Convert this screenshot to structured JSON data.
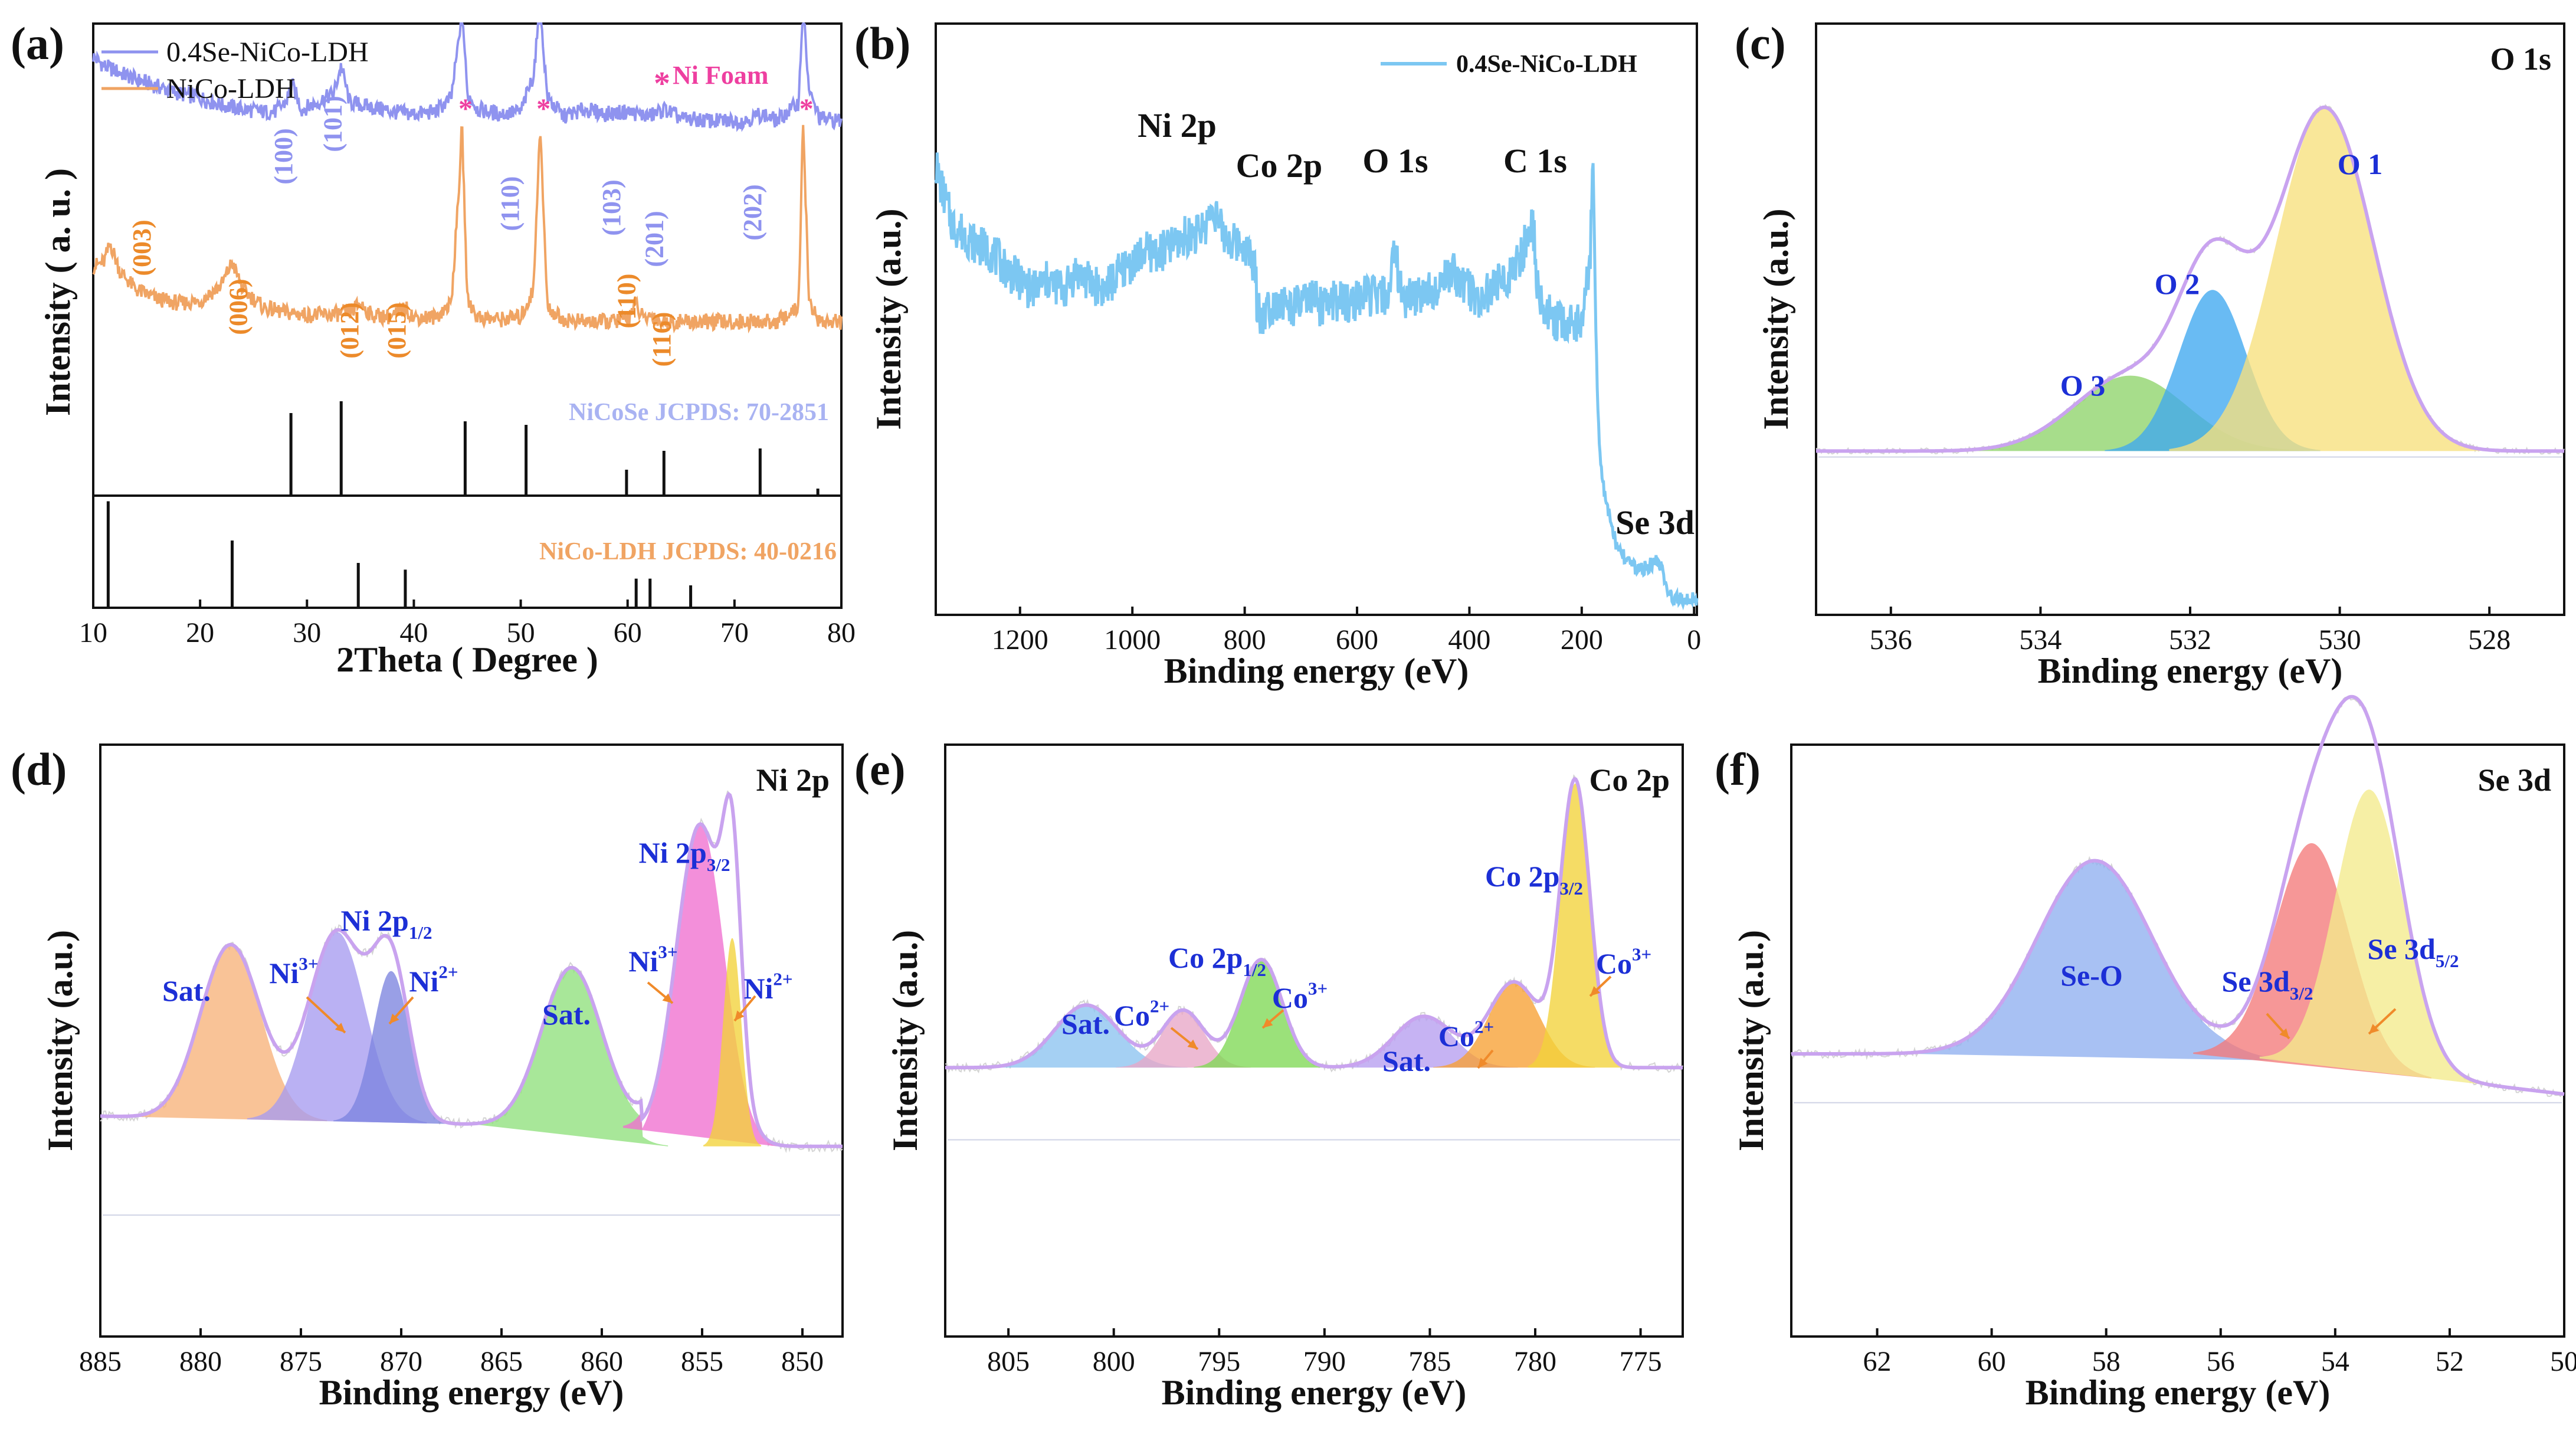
{
  "chart_data": [
    {
      "panel": "(a)",
      "type": "line",
      "xlabel": "2Theta ( Degree )",
      "ylabel": "Intensity ( a. u. )",
      "xlim": [
        10,
        80
      ],
      "xticks": [
        "10",
        "20",
        "30",
        "40",
        "50",
        "60",
        "70",
        "80"
      ],
      "legend": [
        "0.4Se-NiCo-LDH",
        "NiCo-LDH"
      ],
      "legend_colors": [
        "#8f93ef",
        "#f0a463"
      ],
      "marker_label": "Ni Foam",
      "marker_positions": [
        44.5,
        51.8,
        76.4
      ],
      "series": [
        {
          "name": "0.4Se-NiCo-LDH",
          "color": "#8f93ef",
          "x": [
            10,
            11,
            12,
            14,
            16,
            18,
            20,
            22,
            24,
            26,
            27,
            28,
            28.6,
            29.5,
            31,
            32.5,
            33.2,
            34,
            36,
            38,
            40,
            42,
            43.5,
            44.2,
            44.5,
            45,
            46,
            48,
            50,
            51.2,
            51.8,
            52.5,
            54,
            56,
            58,
            60,
            62,
            63.5,
            65,
            68,
            71,
            72.5,
            74,
            76,
            76.4,
            77,
            78,
            80
          ],
          "y": [
            78,
            74,
            72,
            68,
            65,
            62,
            60,
            57,
            55,
            54,
            54,
            58,
            66,
            55,
            58,
            62,
            74,
            58,
            56,
            54,
            53,
            54,
            60,
            85,
            100,
            62,
            55,
            53,
            54,
            70,
            100,
            60,
            52,
            55,
            53,
            54,
            52,
            55,
            51,
            50,
            50,
            53,
            50,
            58,
            100,
            62,
            51,
            50
          ]
        },
        {
          "name": "NiCo-LDH",
          "color": "#f0a463",
          "x": [
            10,
            11,
            11.6,
            12.5,
            14,
            16,
            18,
            20,
            22,
            23,
            24,
            26,
            28,
            30,
            32,
            34,
            35,
            36,
            38,
            39.2,
            40,
            42,
            43.5,
            44.2,
            44.5,
            45,
            46,
            48,
            50,
            51.2,
            51.8,
            52.5,
            54,
            56,
            58,
            60,
            60.7,
            61.5,
            62.3,
            63,
            65,
            68,
            71,
            74,
            76,
            76.4,
            77,
            78,
            80
          ],
          "y": [
            38,
            40,
            48,
            36,
            28,
            24,
            22,
            23,
            30,
            40,
            28,
            20,
            18,
            17,
            17,
            18,
            22,
            17,
            16,
            20,
            16,
            16,
            22,
            70,
            100,
            24,
            16,
            15,
            16,
            28,
            100,
            20,
            15,
            14,
            14,
            15,
            22,
            15,
            17,
            14,
            14,
            14,
            14,
            14,
            20,
            100,
            22,
            14,
            14
          ]
        }
      ],
      "peak_labels_se": [
        {
          "label": "(100)",
          "x": 28.6
        },
        {
          "label": "(101)",
          "x": 33.2
        },
        {
          "label": "(110)",
          "x": 49.8
        },
        {
          "label": "(103)",
          "x": 59.3
        },
        {
          "label": "(201)",
          "x": 63.3
        },
        {
          "label": "(202)",
          "x": 72.5
        }
      ],
      "peak_labels_ldh": [
        {
          "label": "(003)",
          "x": 11.6
        },
        {
          "label": "(006)",
          "x": 23.0
        },
        {
          "label": "(012)",
          "x": 34.8
        },
        {
          "label": "(015)",
          "x": 39.2
        },
        {
          "label": "(110)",
          "x": 60.7
        },
        {
          "label": "(116)",
          "x": 64.0
        }
      ],
      "ref1": {
        "label": "NiCoSe JCPDS: 70-2851",
        "color": "#a9b3f2",
        "lines": [
          {
            "x": 28.5,
            "h": 0.7
          },
          {
            "x": 33.2,
            "h": 0.8
          },
          {
            "x": 44.8,
            "h": 0.63
          },
          {
            "x": 50.5,
            "h": 0.6
          },
          {
            "x": 59.9,
            "h": 0.22
          },
          {
            "x": 63.4,
            "h": 0.38
          },
          {
            "x": 72.4,
            "h": 0.4
          },
          {
            "x": 77.8,
            "h": 0.06
          }
        ]
      },
      "ref2": {
        "label": "NiCo-LDH JCPDS: 40-0216",
        "color": "#f0a463",
        "lines": [
          {
            "x": 11.4,
            "h": 0.95
          },
          {
            "x": 23.0,
            "h": 0.6
          },
          {
            "x": 34.8,
            "h": 0.4
          },
          {
            "x": 39.2,
            "h": 0.34
          },
          {
            "x": 60.8,
            "h": 0.26
          },
          {
            "x": 62.1,
            "h": 0.26
          },
          {
            "x": 65.9,
            "h": 0.2
          }
        ]
      }
    },
    {
      "panel": "(b)",
      "type": "line",
      "xlabel": "Binding energy (eV)",
      "ylabel": "Intensity (a.u.)",
      "xlim": [
        1350,
        -5
      ],
      "xticks": [
        "1200",
        "1000",
        "800",
        "600",
        "400",
        "200",
        "0"
      ],
      "legend": [
        "0.4Se-NiCo-LDH"
      ],
      "color": "#7cc7f2",
      "x": [
        1350,
        1340,
        1320,
        1300,
        1280,
        1250,
        1220,
        1200,
        1180,
        1150,
        1120,
        1100,
        1080,
        1050,
        1020,
        1000,
        980,
        950,
        920,
        900,
        880,
        870,
        855,
        850,
        840,
        820,
        800,
        780,
        779,
        770,
        760,
        740,
        720,
        700,
        680,
        660,
        640,
        620,
        600,
        580,
        560,
        540,
        532,
        525,
        510,
        490,
        470,
        450,
        430,
        400,
        380,
        360,
        340,
        320,
        300,
        290,
        285,
        280,
        270,
        250,
        230,
        200,
        190,
        185,
        180,
        175,
        170,
        165,
        160,
        150,
        140,
        130,
        120,
        100,
        80,
        70,
        60,
        55,
        50,
        40,
        30,
        20,
        10,
        0
      ],
      "y": [
        95,
        90,
        82,
        80,
        78,
        76,
        72,
        70,
        68,
        70,
        68,
        72,
        70,
        68,
        72,
        74,
        76,
        76,
        78,
        80,
        80,
        82,
        86,
        84,
        80,
        78,
        78,
        72,
        66,
        62,
        64,
        66,
        64,
        65,
        66,
        64,
        66,
        65,
        66,
        67,
        66,
        68,
        80,
        68,
        66,
        67,
        68,
        70,
        72,
        68,
        66,
        68,
        70,
        72,
        78,
        82,
        80,
        70,
        64,
        62,
        60,
        62,
        70,
        75,
        98,
        60,
        38,
        30,
        24,
        20,
        14,
        12,
        10,
        8,
        9,
        10,
        9,
        8,
        4,
        2,
        2,
        2,
        2,
        2
      ],
      "labels": [
        {
          "text": "Ni 2p",
          "x": 855
        },
        {
          "text": "Co 2p",
          "x": 780
        },
        {
          "text": "O 1s",
          "x": 532
        },
        {
          "text": "C 1s",
          "x": 285
        },
        {
          "text": "Se 3d",
          "x": 60
        }
      ]
    },
    {
      "panel": "(c)",
      "type": "area",
      "title": "O 1s",
      "xlabel": "Binding energy (eV)",
      "ylabel": "Intensity (a.u.)",
      "xlim": [
        537,
        527
      ],
      "xticks": [
        "536",
        "534",
        "532",
        "530",
        "528"
      ],
      "envelope_color": "#c9a3ef",
      "peaks": [
        {
          "name": "O 3",
          "center": 532.8,
          "height": 0.22,
          "sigma": 0.75,
          "color": "#8ed46a"
        },
        {
          "name": "O 2",
          "center": 531.7,
          "height": 0.47,
          "sigma": 0.45,
          "color": "#3fa8ef"
        },
        {
          "name": "O 1",
          "center": 530.2,
          "height": 1.0,
          "sigma": 0.65,
          "color": "#f7e07c"
        }
      ],
      "labels": [
        {
          "text": "O 1",
          "x": 529.7
        },
        {
          "text": "O 2",
          "x": 532.2
        },
        {
          "text": "O 3",
          "x": 533.4
        }
      ]
    },
    {
      "panel": "(d)",
      "type": "area",
      "title": "Ni 2p",
      "xlabel": "Binding energy (eV)",
      "ylabel": "Intensity (a.u.)",
      "xlim": [
        885,
        848
      ],
      "xticks": [
        "885",
        "880",
        "875",
        "870",
        "865",
        "860",
        "855",
        "850"
      ],
      "envelope_color": "#c9a3ef",
      "peaks": [
        {
          "name": "Sat.",
          "center": 878.5,
          "height": 0.46,
          "sigma": 1.5,
          "color": "#f7b27a"
        },
        {
          "name": "Ni3+",
          "center": 873.2,
          "height": 0.5,
          "sigma": 1.4,
          "color": "#a79bef"
        },
        {
          "name": "Ni2+",
          "center": 870.5,
          "height": 0.4,
          "sigma": 0.9,
          "color": "#7c84df"
        },
        {
          "name": "Sat.",
          "center": 861.5,
          "height": 0.42,
          "sigma": 1.5,
          "color": "#8fe07c"
        },
        {
          "name": "Ni3+",
          "center": 855.1,
          "height": 0.85,
          "sigma": 1.2,
          "color": "#ef6fcf"
        },
        {
          "name": "Ni2+",
          "center": 853.5,
          "height": 0.55,
          "sigma": 0.45,
          "color": "#f2d23a"
        }
      ],
      "labels": [
        {
          "text": "Sat.",
          "x": 880.2
        },
        {
          "text": "Ni 2p",
          "sub": "1/2",
          "x": 870.5
        },
        {
          "text": "Ni",
          "sup": "3+",
          "x": 875.8
        },
        {
          "text": "Ni",
          "sup": "2+",
          "x": 868.5
        },
        {
          "text": "Sat.",
          "x": 861.5
        },
        {
          "text": "Ni 2p",
          "sub": "3/2",
          "x": 853.8
        },
        {
          "text": "Ni",
          "sup": "3+",
          "x": 856.8
        },
        {
          "text": "Ni",
          "sup": "2+",
          "x": 852.3
        }
      ]
    },
    {
      "panel": "(e)",
      "type": "area",
      "title": "Co 2p",
      "xlabel": "Binding energy (eV)",
      "ylabel": "Intensity (a.u.)",
      "xlim": [
        808,
        773
      ],
      "xticks": [
        "805",
        "800",
        "795",
        "790",
        "785",
        "780",
        "775"
      ],
      "envelope_color": "#c9a3ef",
      "peaks": [
        {
          "name": "Sat.",
          "center": 801.3,
          "height": 0.22,
          "sigma": 1.5,
          "color": "#8cc3ef"
        },
        {
          "name": "Co2+",
          "center": 796.7,
          "height": 0.2,
          "sigma": 1.0,
          "color": "#e8a7c6"
        },
        {
          "name": "Co3+",
          "center": 793.0,
          "height": 0.38,
          "sigma": 1.0,
          "color": "#7fd955"
        },
        {
          "name": "Sat.",
          "center": 785.3,
          "height": 0.18,
          "sigma": 1.4,
          "color": "#b69ef0"
        },
        {
          "name": "Co2+",
          "center": 781.0,
          "height": 0.3,
          "sigma": 1.2,
          "color": "#f7a033"
        },
        {
          "name": "Co3+",
          "center": 778.1,
          "height": 1.0,
          "sigma": 0.7,
          "color": "#f2d23a"
        }
      ],
      "labels": [
        {
          "text": "Sat.",
          "x": 802.4
        },
        {
          "text": "Co",
          "sup": "2+",
          "x": 798.4
        },
        {
          "text": "Co 2p",
          "sub": "1/2",
          "x": 796.2
        },
        {
          "text": "Co",
          "sup": "3+",
          "x": 791.6
        },
        {
          "text": "Sat.",
          "x": 786.7
        },
        {
          "text": "Co",
          "sup": "2+",
          "x": 783.0
        },
        {
          "text": "Co 2p",
          "sub": "3/2",
          "x": 779.6
        },
        {
          "text": "Co",
          "sup": "3+",
          "x": 775.8
        }
      ]
    },
    {
      "panel": "(f)",
      "type": "area",
      "title": "Se 3d",
      "xlabel": "Binding energy (eV)",
      "ylabel": "Intensity (a.u.)",
      "xlim": [
        63.5,
        50
      ],
      "xticks": [
        "62",
        "60",
        "58",
        "56",
        "54",
        "52",
        "50"
      ],
      "envelope_color": "#c9a3ef",
      "peaks": [
        {
          "name": "Se-O",
          "center": 58.2,
          "height": 0.48,
          "sigma": 1.0,
          "color": "#8fb0f0"
        },
        {
          "name": "Se 3d3/2",
          "center": 54.4,
          "height": 0.55,
          "sigma": 0.65,
          "color": "#f47a7a"
        },
        {
          "name": "Se 3d5/2",
          "center": 53.4,
          "height": 0.7,
          "sigma": 0.6,
          "color": "#f4ea8c"
        }
      ],
      "labels": [
        {
          "text": "Se-O",
          "x": 58.2
        },
        {
          "text": "Se 3d",
          "sub": "3/2",
          "x": 55.2
        },
        {
          "text": "Se 3d",
          "sub": "5/2",
          "x": 52.5
        }
      ]
    }
  ]
}
